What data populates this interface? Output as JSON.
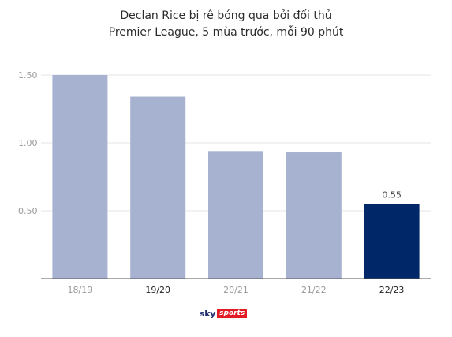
{
  "chart_data": {
    "type": "bar",
    "title": "Declan Rice bị rê bóng qua bởi đối thủ",
    "subtitle": "Premier League, 5 mùa trước, mỗi 90 phút",
    "categories": [
      "18/19",
      "19/20",
      "20/21",
      "21/22",
      "22/23"
    ],
    "values": [
      1.5,
      1.34,
      0.94,
      0.93,
      0.55
    ],
    "data_labels": [
      "",
      "",
      "",
      "",
      "0.55"
    ],
    "highlight_index": 4,
    "ylim": [
      0,
      1.5
    ],
    "yticks": [
      0.5,
      1.0,
      1.5
    ],
    "ytick_labels": [
      "0.50",
      "1.00",
      "1.50"
    ],
    "xlabel": "",
    "ylabel": "",
    "grid": true,
    "colors": {
      "bar": "#a7b2d1",
      "highlight": "#002868",
      "grid": "#e6e6e6",
      "axis": "#555555",
      "tick_label": "#9a9a9a",
      "tick_label_strong": "#222222",
      "data_label": "#444444"
    },
    "strong_x_labels": [
      1,
      4
    ]
  },
  "logo": {
    "sky": "sky",
    "sports": "sports"
  }
}
